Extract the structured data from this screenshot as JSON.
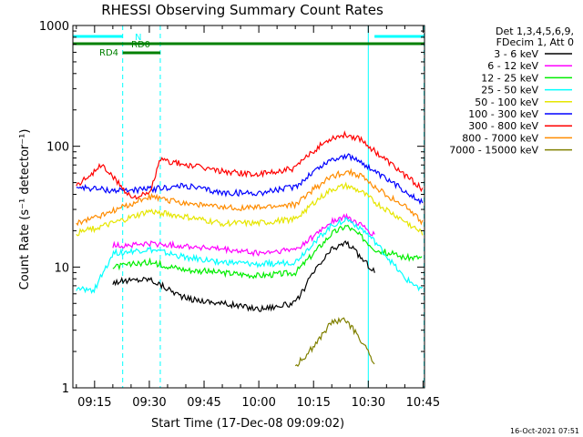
{
  "chart_data": {
    "type": "line",
    "title": "RHESSI Observing Summary Count Rates",
    "xlabel": "Start Time (17-Dec-08 09:09:02)",
    "ylabel": "Count Rate (s⁻¹ detector⁻¹)",
    "yscale": "log",
    "ylim": [
      1,
      1000
    ],
    "xlim_minutes": [
      9.05,
      105.4
    ],
    "x_tick_labels": [
      {
        "label": "09:15",
        "t": 15
      },
      {
        "label": "09:30",
        "t": 30
      },
      {
        "label": "09:45",
        "t": 45
      },
      {
        "label": "10:00",
        "t": 60
      },
      {
        "label": "10:15",
        "t": 75
      },
      {
        "label": "10:30",
        "t": 90
      },
      {
        "label": "10:45",
        "t": 105
      }
    ],
    "y_tick_labels": [
      {
        "label": "1",
        "v": 1
      },
      {
        "label": "10",
        "v": 10
      },
      {
        "label": "100",
        "v": 100
      },
      {
        "label": "1000",
        "v": 1000
      }
    ],
    "legend_header": [
      "Det 1,3,4,5,6,9,",
      "FDecim 1, Att 0"
    ],
    "legend_placement": "right",
    "grid": false,
    "series": [
      {
        "name": "3 - 6 keV",
        "color": "#000000",
        "points": [
          [
            20,
            7.5
          ],
          [
            30,
            8
          ],
          [
            40,
            5.5
          ],
          [
            50,
            5
          ],
          [
            60,
            4.5
          ],
          [
            70,
            5
          ],
          [
            75,
            9
          ],
          [
            80,
            14
          ],
          [
            84,
            16
          ],
          [
            88,
            12
          ],
          [
            92,
            9
          ]
        ]
      },
      {
        "name": "6 - 12 keV",
        "color": "#ff00ff",
        "points": [
          [
            20,
            15
          ],
          [
            30,
            15.5
          ],
          [
            40,
            15
          ],
          [
            50,
            14
          ],
          [
            60,
            13
          ],
          [
            70,
            14
          ],
          [
            75,
            18
          ],
          [
            80,
            24
          ],
          [
            84,
            26
          ],
          [
            88,
            22
          ],
          [
            92,
            18
          ]
        ]
      },
      {
        "name": "12 - 25 keV",
        "color": "#00ee00",
        "points": [
          [
            20,
            10
          ],
          [
            30,
            11
          ],
          [
            40,
            9.5
          ],
          [
            50,
            9
          ],
          [
            60,
            8.5
          ],
          [
            70,
            9
          ],
          [
            75,
            13
          ],
          [
            80,
            19
          ],
          [
            84,
            22
          ],
          [
            88,
            18
          ],
          [
            92,
            14
          ],
          [
            100,
            12
          ],
          [
            105,
            12
          ]
        ]
      },
      {
        "name": "25 - 50 keV",
        "color": "#00ffff",
        "points": [
          [
            10,
            6.5
          ],
          [
            15,
            6.5
          ],
          [
            20,
            13
          ],
          [
            30,
            14
          ],
          [
            40,
            12
          ],
          [
            50,
            11
          ],
          [
            60,
            10.5
          ],
          [
            70,
            11
          ],
          [
            75,
            16
          ],
          [
            80,
            22
          ],
          [
            84,
            25
          ],
          [
            88,
            21
          ],
          [
            92,
            16
          ],
          [
            100,
            8
          ],
          [
            105,
            6.5
          ]
        ]
      },
      {
        "name": "50 - 100 keV",
        "color": "#e6e600",
        "points": [
          [
            10,
            19
          ],
          [
            20,
            23
          ],
          [
            30,
            29
          ],
          [
            40,
            26
          ],
          [
            50,
            23
          ],
          [
            60,
            23
          ],
          [
            70,
            25
          ],
          [
            75,
            34
          ],
          [
            80,
            44
          ],
          [
            84,
            47
          ],
          [
            88,
            42
          ],
          [
            92,
            34
          ],
          [
            100,
            24
          ],
          [
            105,
            19
          ]
        ]
      },
      {
        "name": "100 - 300 keV",
        "color": "#0000ff",
        "points": [
          [
            10,
            46
          ],
          [
            20,
            43
          ],
          [
            30,
            44
          ],
          [
            40,
            47
          ],
          [
            50,
            41
          ],
          [
            60,
            41
          ],
          [
            70,
            46
          ],
          [
            75,
            62
          ],
          [
            80,
            78
          ],
          [
            84,
            83
          ],
          [
            88,
            75
          ],
          [
            92,
            60
          ],
          [
            100,
            43
          ],
          [
            105,
            34
          ]
        ]
      },
      {
        "name": "300 - 800 keV",
        "color": "#ff0000",
        "points": [
          [
            10,
            47
          ],
          [
            17,
            70
          ],
          [
            25,
            38
          ],
          [
            30,
            40
          ],
          [
            33,
            77
          ],
          [
            40,
            70
          ],
          [
            50,
            62
          ],
          [
            60,
            58
          ],
          [
            70,
            66
          ],
          [
            75,
            92
          ],
          [
            80,
            118
          ],
          [
            84,
            125
          ],
          [
            88,
            115
          ],
          [
            92,
            90
          ],
          [
            100,
            58
          ],
          [
            105,
            44
          ]
        ]
      },
      {
        "name": "800 - 7000 keV",
        "color": "#ff8c00",
        "points": [
          [
            10,
            23
          ],
          [
            20,
            29
          ],
          [
            30,
            38
          ],
          [
            40,
            34
          ],
          [
            50,
            31
          ],
          [
            60,
            31
          ],
          [
            70,
            33
          ],
          [
            75,
            44
          ],
          [
            80,
            56
          ],
          [
            84,
            62
          ],
          [
            88,
            57
          ],
          [
            92,
            45
          ],
          [
            100,
            32
          ],
          [
            105,
            23
          ]
        ]
      },
      {
        "name": "7000 - 15000 keV",
        "color": "#808000",
        "points": [
          [
            70,
            1.5
          ],
          [
            75,
            2.2
          ],
          [
            80,
            3.5
          ],
          [
            84,
            3.6
          ],
          [
            88,
            2.5
          ],
          [
            92,
            1.5
          ]
        ]
      }
    ],
    "attenuator_bars": [
      {
        "label": "N",
        "color": "#00ffff",
        "segments": [
          [
            9.05,
            22.7
          ],
          [
            91.7,
            105.4
          ]
        ]
      },
      {
        "label": "RD0",
        "color": "#008000",
        "segments": [
          [
            9.05,
            33
          ],
          [
            33,
            105.4
          ]
        ]
      },
      {
        "label": "RD4",
        "color": "#008000",
        "segments": [
          [
            22.7,
            33
          ]
        ]
      }
    ],
    "vertical_lines": [
      {
        "t": 22.7,
        "style": "dashed",
        "color": "#00ffff"
      },
      {
        "t": 33.0,
        "style": "dashed",
        "color": "#00ffff"
      },
      {
        "t": 90.0,
        "style": "solid",
        "color": "#00ffff"
      },
      {
        "t": 105.3,
        "style": "dashed",
        "color": "#00ffff"
      }
    ]
  },
  "timestamp": "16-Oct-2021 07:51"
}
